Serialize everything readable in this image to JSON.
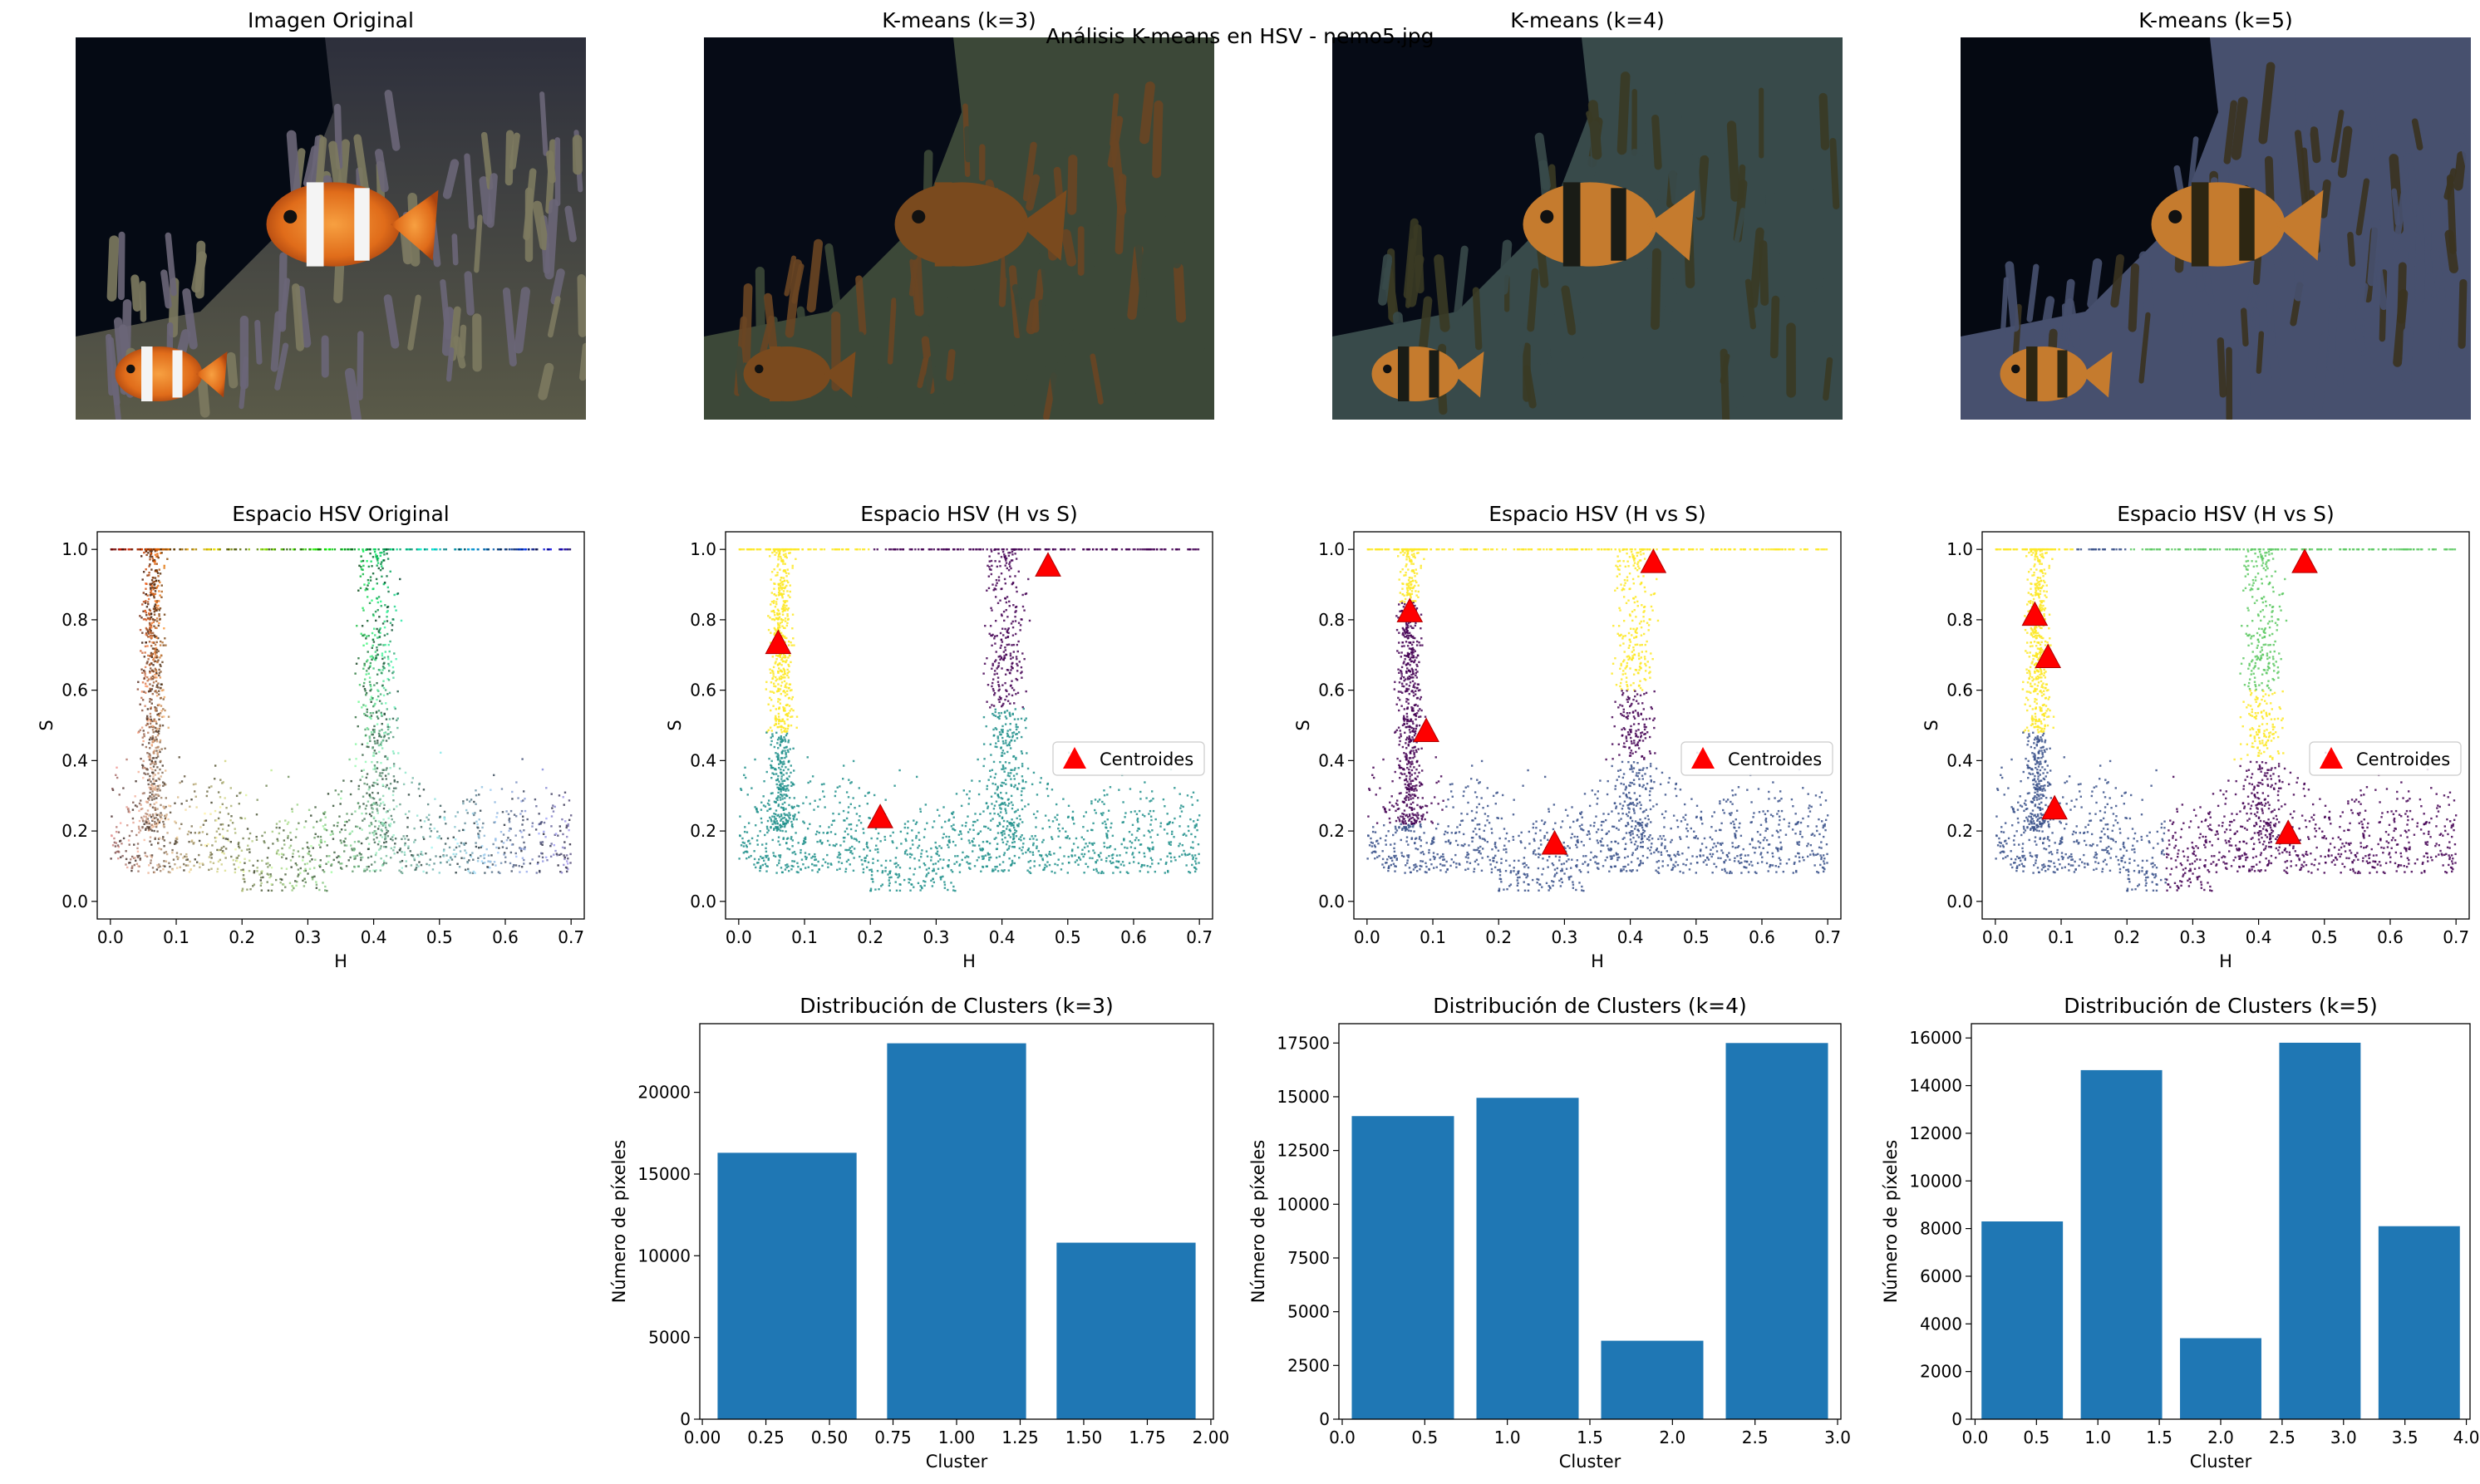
{
  "figure": {
    "suptitle": "Análisis K-means en HSV - nemo5.jpg",
    "colors": {
      "bar": "#1f77b4",
      "centroid": "#ff0000",
      "viridis": [
        "#440154",
        "#3b528b",
        "#21908c",
        "#5dc963",
        "#fde725"
      ]
    }
  },
  "images": [
    {
      "title": "Imagen Original",
      "variant": "original"
    },
    {
      "title": "K-means (k=3)",
      "variant": "k3"
    },
    {
      "title": "K-means (k=4)",
      "variant": "k4"
    },
    {
      "title": "K-means (k=5)",
      "variant": "k5"
    }
  ],
  "chart_data": [
    {
      "type": "scatter",
      "title": "Espacio HSV Original",
      "xlabel": "H",
      "ylabel": "S",
      "xlim": [
        -0.02,
        0.72
      ],
      "ylim": [
        -0.05,
        1.05
      ],
      "xticks": [
        "0.0",
        "0.1",
        "0.2",
        "0.3",
        "0.4",
        "0.5",
        "0.6",
        "0.7"
      ],
      "yticks": [
        "0.0",
        "0.2",
        "0.4",
        "0.6",
        "0.8",
        "1.0"
      ],
      "coloring": "hsv"
    },
    {
      "type": "scatter",
      "title": "Espacio HSV (H vs S)",
      "xlabel": "H",
      "ylabel": "S",
      "xlim": [
        -0.02,
        0.72
      ],
      "ylim": [
        -0.05,
        1.05
      ],
      "xticks": [
        "0.0",
        "0.1",
        "0.2",
        "0.3",
        "0.4",
        "0.5",
        "0.6",
        "0.7"
      ],
      "yticks": [
        "0.0",
        "0.2",
        "0.4",
        "0.6",
        "0.8",
        "1.0"
      ],
      "k": 3,
      "centroids": [
        [
          0.06,
          0.73
        ],
        [
          0.47,
          0.95
        ],
        [
          0.215,
          0.235
        ]
      ],
      "legend": "Centroides",
      "legend_loc": "center right"
    },
    {
      "type": "scatter",
      "title": "Espacio HSV (H vs S)",
      "xlabel": "H",
      "ylabel": "S",
      "xlim": [
        -0.02,
        0.72
      ],
      "ylim": [
        -0.05,
        1.05
      ],
      "xticks": [
        "0.0",
        "0.1",
        "0.2",
        "0.3",
        "0.4",
        "0.5",
        "0.6",
        "0.7"
      ],
      "yticks": [
        "0.0",
        "0.2",
        "0.4",
        "0.6",
        "0.8",
        "1.0"
      ],
      "k": 4,
      "centroids": [
        [
          0.065,
          0.82
        ],
        [
          0.09,
          0.48
        ],
        [
          0.435,
          0.96
        ],
        [
          0.285,
          0.16
        ]
      ],
      "legend": "Centroides",
      "legend_loc": "center right"
    },
    {
      "type": "scatter",
      "title": "Espacio HSV (H vs S)",
      "xlabel": "H",
      "ylabel": "S",
      "xlim": [
        -0.02,
        0.72
      ],
      "ylim": [
        -0.05,
        1.05
      ],
      "xticks": [
        "0.0",
        "0.1",
        "0.2",
        "0.3",
        "0.4",
        "0.5",
        "0.6",
        "0.7"
      ],
      "yticks": [
        "0.0",
        "0.2",
        "0.4",
        "0.6",
        "0.8",
        "1.0"
      ],
      "k": 5,
      "centroids": [
        [
          0.06,
          0.81
        ],
        [
          0.08,
          0.69
        ],
        [
          0.09,
          0.26
        ],
        [
          0.47,
          0.96
        ],
        [
          0.445,
          0.19
        ]
      ],
      "legend": "Centroides",
      "legend_loc": "center right"
    },
    {
      "type": "bar",
      "title": "Distribución de Clusters (k=3)",
      "xlabel": "Cluster",
      "ylabel": "Número de píxeles",
      "x": [
        0,
        1,
        2
      ],
      "values": [
        16300,
        23000,
        10800
      ],
      "xlim": [
        -0.01,
        2.01
      ],
      "ylim": [
        0,
        24200
      ],
      "xticks": [
        "0.00",
        "0.25",
        "0.50",
        "0.75",
        "1.00",
        "1.25",
        "1.50",
        "1.75",
        "2.00"
      ],
      "yticks": [
        "0",
        "5000",
        "10000",
        "15000",
        "20000"
      ]
    },
    {
      "type": "bar",
      "title": "Distribución de Clusters (k=4)",
      "xlabel": "Cluster",
      "ylabel": "Número de píxeles",
      "x": [
        0,
        1,
        2,
        3
      ],
      "values": [
        14100,
        14950,
        3650,
        17500
      ],
      "xlim": [
        -0.02,
        3.02
      ],
      "ylim": [
        0,
        18400
      ],
      "xticks": [
        "0.0",
        "0.5",
        "1.0",
        "1.5",
        "2.0",
        "2.5",
        "3.0"
      ],
      "yticks": [
        "0",
        "2500",
        "5000",
        "7500",
        "10000",
        "12500",
        "15000",
        "17500"
      ]
    },
    {
      "type": "bar",
      "title": "Distribución de Clusters (k=5)",
      "xlabel": "Cluster",
      "ylabel": "Número de píxeles",
      "x": [
        0,
        1,
        2,
        3,
        4
      ],
      "values": [
        8300,
        14650,
        3400,
        15800,
        8100
      ],
      "xlim": [
        -0.03,
        4.03
      ],
      "ylim": [
        0,
        16600
      ],
      "xticks": [
        "0.0",
        "0.5",
        "1.0",
        "1.5",
        "2.0",
        "2.5",
        "3.0",
        "3.5",
        "4.0"
      ],
      "yticks": [
        "0",
        "2000",
        "4000",
        "6000",
        "8000",
        "10000",
        "12000",
        "14000",
        "16000"
      ]
    }
  ]
}
